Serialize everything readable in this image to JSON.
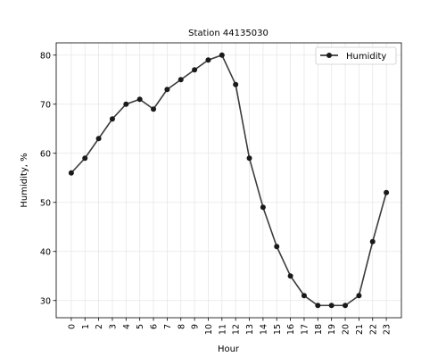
{
  "chart_data": {
    "type": "line",
    "title": "Station 44135030",
    "xlabel": "Hour",
    "ylabel": "Humidity, %",
    "x": [
      0,
      1,
      2,
      3,
      4,
      5,
      6,
      7,
      8,
      9,
      10,
      11,
      12,
      13,
      14,
      15,
      16,
      17,
      18,
      19,
      20,
      21,
      22,
      23
    ],
    "x_tick_labels": [
      "0",
      "1",
      "2",
      "3",
      "4",
      "5",
      "6",
      "7",
      "8",
      "9",
      "10",
      "11",
      "12",
      "13",
      "14",
      "15",
      "16",
      "17",
      "18",
      "19",
      "20",
      "21",
      "22",
      "23"
    ],
    "xlim": [
      -1.1,
      24.1
    ],
    "ylim": [
      26.5,
      82.5
    ],
    "y_ticks": [
      30,
      40,
      50,
      60,
      70,
      80
    ],
    "y_tick_labels": [
      "30",
      "40",
      "50",
      "60",
      "70",
      "80"
    ],
    "grid": true,
    "legend_position": "upper right",
    "series": [
      {
        "name": "Humidity",
        "color": "#1a1a1a",
        "marker": "circle",
        "values": [
          56,
          59,
          63,
          67,
          70,
          71,
          69,
          73,
          75,
          77,
          79,
          80,
          74,
          59,
          49,
          41,
          35,
          31,
          29,
          29,
          29,
          31,
          42,
          52
        ]
      }
    ]
  }
}
